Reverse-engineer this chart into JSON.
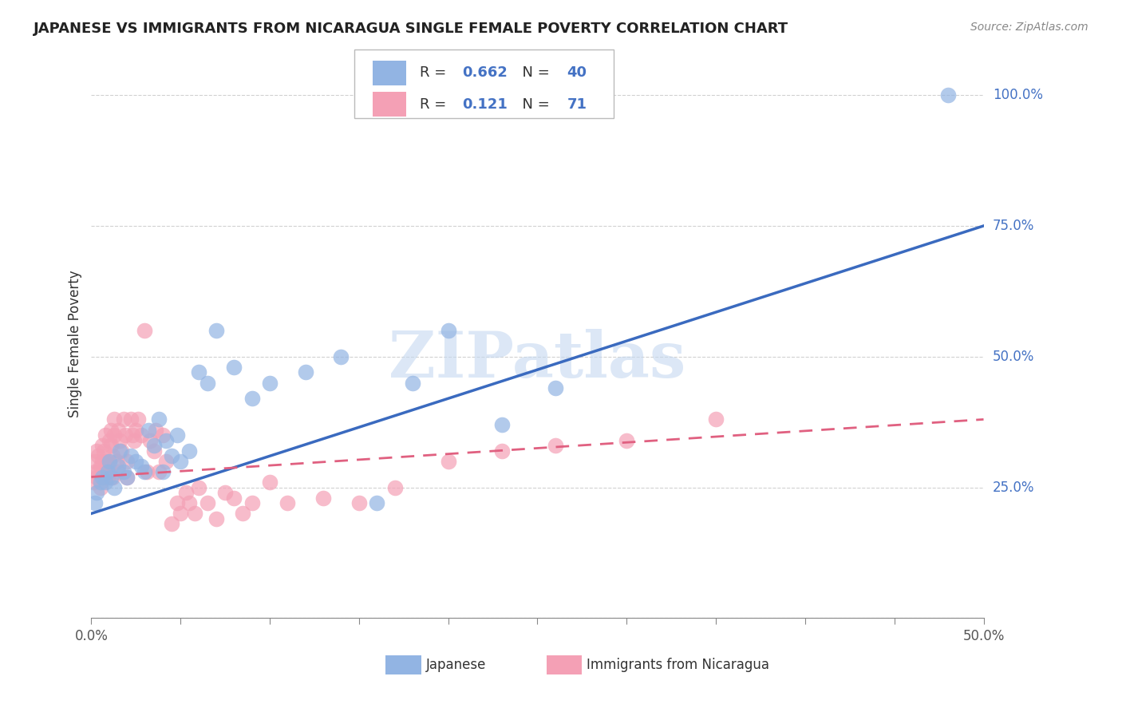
{
  "title": "JAPANESE VS IMMIGRANTS FROM NICARAGUA SINGLE FEMALE POVERTY CORRELATION CHART",
  "source": "Source: ZipAtlas.com",
  "ylabel": "Single Female Poverty",
  "watermark": "ZIPatlas",
  "xlim": [
    0,
    0.5
  ],
  "ylim": [
    0,
    1.05
  ],
  "ytick_labels": [
    "",
    "25.0%",
    "50.0%",
    "75.0%",
    "100.0%"
  ],
  "legend1_r": "0.662",
  "legend1_n": "40",
  "legend2_r": "0.121",
  "legend2_n": "71",
  "japanese_color": "#92b4e3",
  "nicaragua_color": "#f4a0b5",
  "japanese_line_color": "#3a6abf",
  "nicaragua_line_color": "#e06080",
  "japanese_x": [
    0.002,
    0.003,
    0.005,
    0.006,
    0.008,
    0.009,
    0.01,
    0.011,
    0.013,
    0.015,
    0.016,
    0.018,
    0.02,
    0.022,
    0.025,
    0.028,
    0.03,
    0.032,
    0.035,
    0.038,
    0.04,
    0.042,
    0.045,
    0.048,
    0.05,
    0.055,
    0.06,
    0.065,
    0.07,
    0.08,
    0.09,
    0.1,
    0.12,
    0.14,
    0.16,
    0.18,
    0.2,
    0.23,
    0.26,
    0.48
  ],
  "japanese_y": [
    0.22,
    0.24,
    0.26,
    0.27,
    0.26,
    0.28,
    0.3,
    0.27,
    0.25,
    0.29,
    0.32,
    0.28,
    0.27,
    0.31,
    0.3,
    0.29,
    0.28,
    0.36,
    0.33,
    0.38,
    0.28,
    0.34,
    0.31,
    0.35,
    0.3,
    0.32,
    0.47,
    0.45,
    0.55,
    0.48,
    0.42,
    0.45,
    0.47,
    0.5,
    0.22,
    0.45,
    0.55,
    0.37,
    0.44,
    1.0
  ],
  "nicaragua_x": [
    0.001,
    0.002,
    0.002,
    0.003,
    0.003,
    0.004,
    0.004,
    0.005,
    0.005,
    0.006,
    0.006,
    0.007,
    0.007,
    0.008,
    0.008,
    0.009,
    0.009,
    0.01,
    0.01,
    0.011,
    0.011,
    0.012,
    0.012,
    0.013,
    0.013,
    0.014,
    0.015,
    0.015,
    0.016,
    0.017,
    0.018,
    0.019,
    0.02,
    0.02,
    0.022,
    0.023,
    0.024,
    0.025,
    0.026,
    0.028,
    0.03,
    0.031,
    0.033,
    0.035,
    0.036,
    0.038,
    0.04,
    0.042,
    0.045,
    0.048,
    0.05,
    0.053,
    0.055,
    0.058,
    0.06,
    0.065,
    0.07,
    0.075,
    0.08,
    0.085,
    0.09,
    0.1,
    0.11,
    0.13,
    0.15,
    0.17,
    0.2,
    0.23,
    0.26,
    0.3,
    0.35
  ],
  "nicaragua_y": [
    0.26,
    0.28,
    0.3,
    0.27,
    0.32,
    0.28,
    0.31,
    0.25,
    0.29,
    0.3,
    0.33,
    0.27,
    0.32,
    0.29,
    0.35,
    0.27,
    0.3,
    0.28,
    0.34,
    0.33,
    0.36,
    0.27,
    0.31,
    0.35,
    0.38,
    0.3,
    0.36,
    0.28,
    0.34,
    0.32,
    0.38,
    0.35,
    0.27,
    0.3,
    0.38,
    0.35,
    0.34,
    0.36,
    0.38,
    0.35,
    0.55,
    0.28,
    0.34,
    0.32,
    0.36,
    0.28,
    0.35,
    0.3,
    0.18,
    0.22,
    0.2,
    0.24,
    0.22,
    0.2,
    0.25,
    0.22,
    0.19,
    0.24,
    0.23,
    0.2,
    0.22,
    0.26,
    0.22,
    0.23,
    0.22,
    0.25,
    0.3,
    0.32,
    0.33,
    0.34,
    0.38
  ]
}
